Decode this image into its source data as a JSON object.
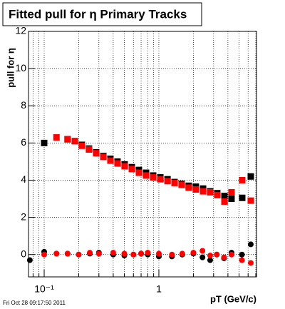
{
  "chart_data": {
    "type": "scatter",
    "title": "Fitted pull for η  Primary Tracks",
    "ylabel": "pull for η",
    "xlabel": "pT (GeV/c)",
    "footer": "Fri Oct 28 09:17:50 2011",
    "log_x": true,
    "grid": true,
    "xlim": [
      0.073,
      7.1
    ],
    "ylim": [
      -1.2,
      12
    ],
    "xticks": [
      {
        "value": 0.1,
        "label": "10⁻¹"
      },
      1
    ],
    "xminorticks": [
      0.08,
      0.09,
      0.2,
      0.3,
      0.4,
      0.5,
      0.6,
      0.7,
      0.8,
      0.9,
      2,
      3,
      4,
      5,
      6,
      7
    ],
    "yticks": [
      0,
      2,
      4,
      6,
      8,
      10,
      12
    ],
    "series": [
      {
        "color": "#000000",
        "marker": "square",
        "x": [
          0.1,
          0.16,
          0.185,
          0.213,
          0.246,
          0.284,
          0.328,
          0.378,
          0.436,
          0.503,
          0.581,
          0.67,
          0.773,
          0.892,
          1.03,
          1.19,
          1.37,
          1.58,
          1.82,
          2.1,
          2.43,
          2.8,
          3.23,
          3.73,
          4.3,
          5.33,
          6.33
        ],
        "values": [
          6.0,
          6.2,
          6.1,
          5.9,
          5.7,
          5.5,
          5.3,
          5.15,
          5.0,
          4.85,
          4.7,
          4.55,
          4.4,
          4.25,
          4.15,
          4.05,
          3.9,
          3.8,
          3.7,
          3.65,
          3.55,
          3.4,
          3.3,
          3.15,
          3.0,
          3.05,
          4.2
        ]
      },
      {
        "color": "#ff0000",
        "marker": "square",
        "x": [
          0.128,
          0.16,
          0.185,
          0.213,
          0.246,
          0.284,
          0.328,
          0.378,
          0.436,
          0.503,
          0.581,
          0.67,
          0.773,
          0.892,
          1.03,
          1.19,
          1.37,
          1.58,
          1.82,
          2.1,
          2.43,
          2.8,
          3.23,
          3.73,
          4.3,
          5.33,
          6.33
        ],
        "values": [
          6.3,
          6.2,
          6.1,
          5.85,
          5.65,
          5.45,
          5.25,
          5.05,
          4.9,
          4.75,
          4.6,
          4.4,
          4.25,
          4.15,
          4.05,
          3.95,
          3.85,
          3.75,
          3.6,
          3.5,
          3.4,
          3.35,
          3.2,
          2.85,
          3.35,
          4.0,
          2.9
        ]
      },
      {
        "color": "#000000",
        "marker": "circle",
        "x": [
          0.075,
          0.1,
          0.128,
          0.16,
          0.2,
          0.25,
          0.3,
          0.4,
          0.5,
          0.6,
          0.7,
          0.8,
          1.0,
          1.3,
          1.6,
          2.0,
          2.4,
          2.8,
          3.2,
          3.7,
          4.3,
          5.3,
          6.33
        ],
        "values": [
          -0.3,
          0.15,
          0.05,
          0.05,
          0.0,
          0.05,
          0.1,
          0.0,
          -0.05,
          0.0,
          0.05,
          0.0,
          -0.1,
          -0.1,
          0.0,
          0.05,
          -0.15,
          -0.3,
          0.0,
          -0.2,
          0.1,
          0.0,
          0.55
        ]
      },
      {
        "color": "#ff0000",
        "marker": "circle",
        "x": [
          0.1,
          0.128,
          0.16,
          0.2,
          0.25,
          0.3,
          0.4,
          0.5,
          0.6,
          0.7,
          0.8,
          1.0,
          1.3,
          1.6,
          2.0,
          2.4,
          2.8,
          3.2,
          3.7,
          4.3,
          5.3,
          6.33
        ],
        "values": [
          0.0,
          0.05,
          0.05,
          0.0,
          0.1,
          0.05,
          0.1,
          0.05,
          0.0,
          0.05,
          0.1,
          0.05,
          0.0,
          0.05,
          0.1,
          0.2,
          -0.05,
          0.0,
          -0.15,
          0.0,
          -0.3,
          -0.45
        ]
      }
    ]
  }
}
